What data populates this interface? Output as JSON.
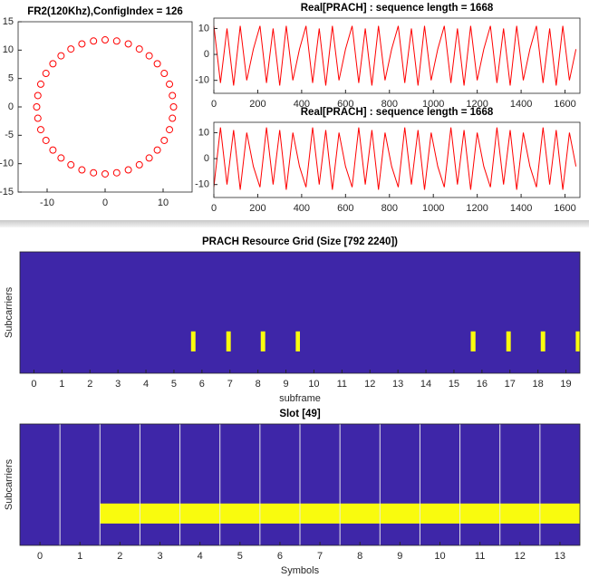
{
  "chart_data": [
    {
      "type": "scatter",
      "title": "FR2(120Khz),ConfigIndex = 126",
      "color": "#ff0000",
      "x": [
        11.8,
        11.6,
        11.1,
        10.2,
        9.0,
        7.6,
        5.9,
        4.0,
        2.0,
        0,
        -2.0,
        -4.0,
        -5.9,
        -7.6,
        -9.0,
        -10.2,
        -11.1,
        -11.6,
        -11.8,
        -11.6,
        -11.1,
        -10.2,
        -9.0,
        -7.6,
        -5.9,
        -4.0,
        -2.0,
        0,
        2.0,
        4.0,
        5.9,
        7.6,
        9.0,
        10.2,
        11.1,
        11.6
      ],
      "values": [
        0,
        2.0,
        4.0,
        5.9,
        7.6,
        9.0,
        10.2,
        11.1,
        11.6,
        11.8,
        11.6,
        11.1,
        10.2,
        9.0,
        7.6,
        5.9,
        4.0,
        2.0,
        0,
        -2.0,
        -4.0,
        -5.9,
        -7.6,
        -9.0,
        -10.2,
        -11.1,
        -11.6,
        -11.8,
        -11.6,
        -11.1,
        -10.2,
        -9.0,
        -7.6,
        -5.9,
        -4.0,
        -2.0
      ],
      "xlim": [
        -15,
        15
      ],
      "xticks": [
        -10,
        0,
        10
      ],
      "ylim": [
        -15,
        15
      ],
      "yticks": [
        -15,
        -10,
        -5,
        0,
        5,
        10,
        15
      ]
    },
    {
      "type": "line",
      "title": "Real[PRACH] : sequence length = 1668",
      "color": "#ff0000",
      "x": [
        0,
        30,
        60,
        90,
        120,
        150,
        180,
        210,
        240,
        270,
        300,
        330,
        360,
        390,
        420,
        450,
        480,
        510,
        540,
        570,
        600,
        630,
        660,
        690,
        720,
        750,
        780,
        810,
        840,
        870,
        900,
        930,
        960,
        990,
        1020,
        1050,
        1080,
        1110,
        1140,
        1170,
        1200,
        1230,
        1260,
        1290,
        1320,
        1350,
        1380,
        1410,
        1440,
        1470,
        1500,
        1530,
        1560,
        1590,
        1620,
        1650
      ],
      "values": [
        11,
        -11,
        10,
        -12,
        11,
        -10,
        2,
        11,
        -11,
        10,
        -12,
        11,
        -10,
        2,
        11,
        -11,
        10,
        -12,
        11,
        -10,
        2,
        11,
        -11,
        10,
        -12,
        11,
        -10,
        2,
        11,
        -11,
        10,
        -12,
        11,
        -10,
        2,
        11,
        -11,
        10,
        -12,
        11,
        -10,
        2,
        11,
        -11,
        10,
        -12,
        11,
        -10,
        2,
        11,
        -11,
        10,
        -12,
        11,
        -10,
        2
      ],
      "xlim": [
        0,
        1668
      ],
      "xticks": [
        0,
        200,
        400,
        600,
        800,
        1000,
        1200,
        1400,
        1600
      ],
      "ylim": [
        -15,
        14
      ],
      "yticks": [
        -10,
        0,
        10
      ]
    },
    {
      "type": "line",
      "title": "Real[PRACH] : sequence length = 1668",
      "color": "#ff0000",
      "x": [
        0,
        30,
        60,
        90,
        120,
        150,
        180,
        210,
        240,
        270,
        300,
        330,
        360,
        390,
        420,
        450,
        480,
        510,
        540,
        570,
        600,
        630,
        660,
        690,
        720,
        750,
        780,
        810,
        840,
        870,
        900,
        930,
        960,
        990,
        1020,
        1050,
        1080,
        1110,
        1140,
        1170,
        1200,
        1230,
        1260,
        1290,
        1320,
        1350,
        1380,
        1410,
        1440,
        1470,
        1500,
        1530,
        1560,
        1590,
        1620,
        1650
      ],
      "values": [
        -11,
        12,
        -10,
        11,
        -12,
        10,
        -3,
        -11,
        12,
        -10,
        11,
        -12,
        10,
        -3,
        -11,
        12,
        -10,
        11,
        -12,
        10,
        -3,
        -11,
        12,
        -10,
        11,
        -12,
        10,
        -3,
        -11,
        12,
        -10,
        11,
        -12,
        10,
        -3,
        -11,
        12,
        -10,
        11,
        -12,
        10,
        -3,
        -11,
        12,
        -10,
        11,
        -12,
        10,
        -3,
        -11,
        12,
        -10,
        11,
        -12,
        10,
        -3
      ],
      "xlim": [
        0,
        1668
      ],
      "xticks": [
        0,
        200,
        400,
        600,
        800,
        1000,
        1200,
        1400,
        1600
      ],
      "ylim": [
        -15,
        14
      ],
      "yticks": [
        -10,
        0,
        10
      ]
    },
    {
      "type": "heatmap",
      "title": "PRACH Resource Grid (Size [792 2240])",
      "xlabel": "subframe",
      "ylabel": "Subcarriers",
      "background": "#3e26a8",
      "color": "#f9fb0e",
      "x_ranges": [
        [
          5.61,
          5.77
        ],
        [
          6.87,
          7.03
        ],
        [
          8.1,
          8.26
        ],
        [
          9.35,
          9.5
        ],
        [
          15.6,
          15.77
        ],
        [
          16.87,
          17.03
        ],
        [
          18.1,
          18.26
        ],
        [
          19.35,
          19.5
        ]
      ],
      "xlim": [
        -0.5,
        19.5
      ],
      "xticks": [
        0,
        1,
        2,
        3,
        4,
        5,
        6,
        7,
        8,
        9,
        10,
        11,
        12,
        13,
        14,
        15,
        16,
        17,
        18,
        19
      ]
    },
    {
      "type": "heatmap",
      "title": "Slot [49]",
      "xlabel": "Symbols",
      "ylabel": "Subcarriers",
      "background": "#3e26a8",
      "color": "#f9fb0e",
      "grid_color": "#e6e6e6",
      "x_ranges": [
        [
          1.5,
          13.5
        ]
      ],
      "vlines": [
        0.5,
        1.5,
        2.5,
        3.5,
        4.5,
        5.5,
        6.5,
        7.5,
        8.5,
        9.5,
        10.5,
        11.5,
        12.5
      ],
      "xlim": [
        -0.5,
        13.5
      ],
      "xticks": [
        0,
        1,
        2,
        3,
        4,
        5,
        6,
        7,
        8,
        9,
        10,
        11,
        12,
        13
      ]
    }
  ]
}
